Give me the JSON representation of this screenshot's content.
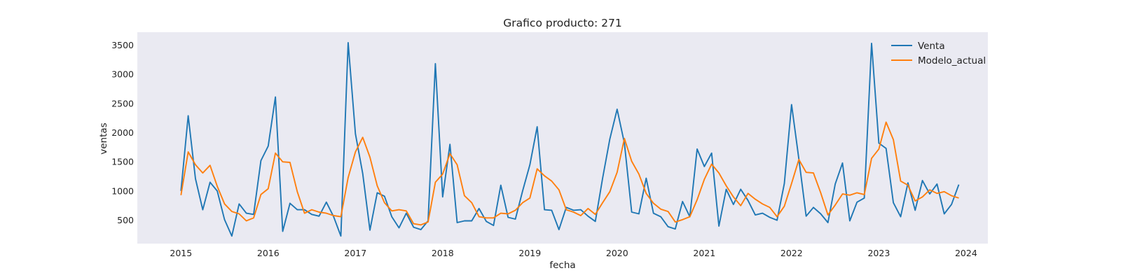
{
  "chart_data": {
    "type": "line",
    "title": "Grafico producto: 271",
    "xlabel": "fecha",
    "ylabel": "ventas",
    "x_ticks": [
      "2015",
      "2016",
      "2017",
      "2018",
      "2019",
      "2020",
      "2021",
      "2022",
      "2023",
      "2024"
    ],
    "y_ticks": [
      500,
      1000,
      1500,
      2000,
      2500,
      3000,
      3500
    ],
    "ylim": [
      100,
      3720
    ],
    "xlim": [
      "2014-07",
      "2024-04"
    ],
    "x_start": "2015-01",
    "x_step": "1 month",
    "grid": false,
    "legend": "top-right",
    "background": "#eaeaf2",
    "series": [
      {
        "name": "Venta",
        "color": "#1f77b4",
        "values": [
          1000,
          2290,
          1210,
          680,
          1150,
          1000,
          510,
          230,
          780,
          620,
          600,
          1520,
          1770,
          2610,
          310,
          790,
          680,
          680,
          600,
          570,
          810,
          560,
          230,
          3540,
          1980,
          1300,
          330,
          970,
          910,
          560,
          370,
          620,
          380,
          340,
          490,
          3180,
          900,
          1800,
          460,
          490,
          490,
          700,
          480,
          410,
          1100,
          550,
          520,
          1000,
          1450,
          2100,
          680,
          670,
          340,
          720,
          670,
          680,
          570,
          480,
          1220,
          1890,
          2400,
          1820,
          640,
          610,
          1220,
          620,
          560,
          390,
          350,
          820,
          560,
          1720,
          1420,
          1650,
          400,
          1030,
          770,
          1030,
          840,
          590,
          620,
          550,
          500,
          1130,
          2480,
          1550,
          570,
          720,
          610,
          460,
          1120,
          1480,
          490,
          810,
          880,
          3530,
          1820,
          1730,
          800,
          560,
          1140,
          670,
          1180,
          950,
          1120,
          610,
          770,
          1110
        ]
      },
      {
        "name": "Modelo_actual",
        "color": "#ff7f0e",
        "values": [
          930,
          1670,
          1450,
          1310,
          1440,
          1080,
          780,
          650,
          610,
          490,
          540,
          940,
          1040,
          1650,
          1500,
          1490,
          990,
          620,
          680,
          640,
          620,
          580,
          560,
          1230,
          1670,
          1920,
          1580,
          1090,
          800,
          660,
          680,
          660,
          440,
          420,
          470,
          1150,
          1290,
          1640,
          1450,
          920,
          800,
          560,
          540,
          540,
          620,
          610,
          670,
          800,
          880,
          1380,
          1260,
          1170,
          1020,
          680,
          640,
          580,
          700,
          600,
          800,
          990,
          1320,
          1900,
          1510,
          1290,
          960,
          790,
          690,
          650,
          470,
          510,
          560,
          850,
          1200,
          1460,
          1310,
          1090,
          900,
          750,
          960,
          860,
          780,
          720,
          560,
          740,
          1130,
          1540,
          1320,
          1310,
          970,
          590,
          760,
          950,
          930,
          970,
          940,
          1560,
          1720,
          2180,
          1880,
          1170,
          1100,
          830,
          900,
          1020,
          960,
          990,
          920,
          880
        ]
      }
    ]
  }
}
